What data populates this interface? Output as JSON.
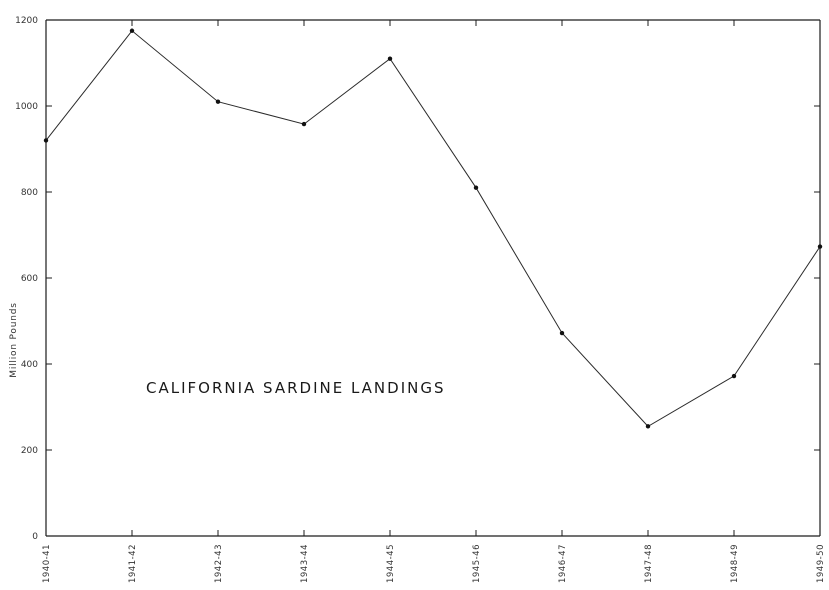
{
  "chart_data": {
    "type": "line",
    "title": "CALIFORNIA SARDINE LANDINGS",
    "xlabel": "",
    "ylabel": "Million Pounds",
    "categories": [
      "1940-41",
      "1941-42",
      "1942-43",
      "1943-44",
      "1944-45",
      "1945-46",
      "1946-47",
      "1947-48",
      "1948-49",
      "1949-50"
    ],
    "series": [
      {
        "values": [
          920,
          1175,
          1010,
          958,
          1110,
          810,
          472,
          255,
          372,
          673
        ]
      }
    ],
    "ylim": [
      0,
      1200
    ],
    "yticks": [
      0,
      200,
      400,
      600,
      800,
      1000,
      1200
    ],
    "ytick_labels": [
      "0",
      "200",
      "400",
      "600",
      "800",
      "1000",
      "1200"
    ],
    "grid": false,
    "line_color": "#2a2a2a",
    "marker_color": "#111111"
  }
}
